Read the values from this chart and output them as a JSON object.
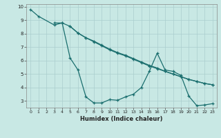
{
  "xlabel": "Humidex (Indice chaleur)",
  "background_color": "#c8e8e4",
  "line_color": "#1a6e6e",
  "xlim": [
    -0.5,
    23.5
  ],
  "ylim": [
    2.5,
    10.2
  ],
  "yticks": [
    3,
    4,
    5,
    6,
    7,
    8,
    9,
    10
  ],
  "xticks": [
    0,
    1,
    2,
    3,
    4,
    5,
    6,
    7,
    8,
    9,
    10,
    11,
    12,
    13,
    14,
    15,
    16,
    17,
    18,
    19,
    20,
    21,
    22,
    23
  ],
  "series": [
    {
      "x": [
        0,
        1,
        3,
        4,
        5,
        6,
        7,
        8,
        9,
        10,
        11,
        12,
        13,
        14,
        15,
        16,
        17,
        18,
        19,
        20,
        21,
        22,
        23
      ],
      "y": [
        9.8,
        9.3,
        8.65,
        8.8,
        6.2,
        5.3,
        3.3,
        2.85,
        2.85,
        3.1,
        3.05,
        3.3,
        3.5,
        4.0,
        5.2,
        6.55,
        5.3,
        5.2,
        4.9,
        3.35,
        2.65,
        2.7,
        2.8
      ]
    },
    {
      "x": [
        3,
        4,
        5,
        6,
        7,
        8,
        9,
        10,
        11,
        12,
        13,
        14,
        15,
        16,
        17,
        18,
        19,
        20,
        21,
        22,
        23
      ],
      "y": [
        8.8,
        8.8,
        8.55,
        8.05,
        7.7,
        7.45,
        7.15,
        6.85,
        6.6,
        6.4,
        6.15,
        5.9,
        5.65,
        5.45,
        5.2,
        5.0,
        4.8,
        4.6,
        4.45,
        4.3,
        4.2
      ]
    },
    {
      "x": [
        5,
        6,
        7,
        8,
        9,
        10,
        11,
        12,
        13,
        14,
        15,
        16,
        17,
        18,
        19,
        20,
        21,
        22,
        23
      ],
      "y": [
        8.55,
        8.05,
        7.7,
        7.4,
        7.1,
        6.8,
        6.55,
        6.35,
        6.1,
        5.85,
        5.6,
        5.4,
        5.2,
        5.0,
        4.8,
        4.6,
        4.45,
        4.3,
        4.2
      ]
    }
  ]
}
